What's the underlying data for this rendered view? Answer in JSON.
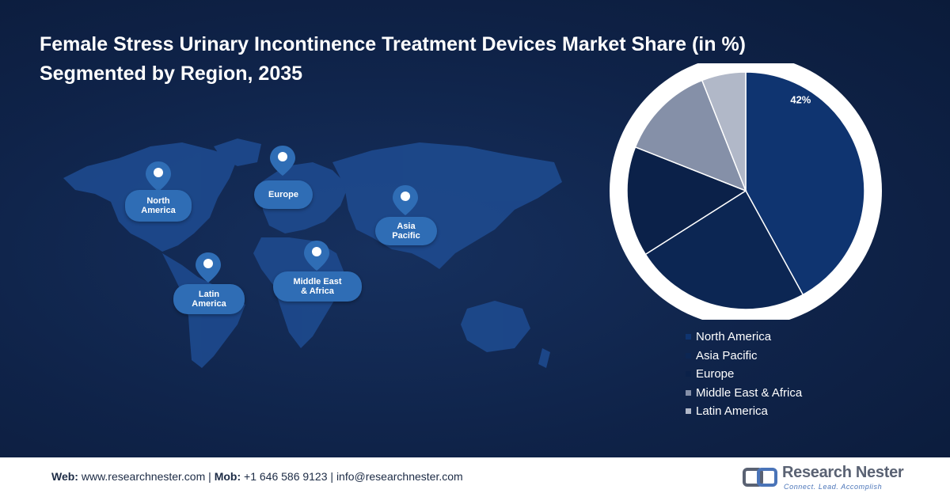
{
  "title": {
    "line1": "Female Stress Urinary Incontinence Treatment Devices Market Share (in %)",
    "line2": "Segmented by Region, 2035"
  },
  "map_labels": {
    "north_america": [
      "North",
      "America"
    ],
    "europe": [
      "Europe"
    ],
    "asia_pacific": [
      "Asia",
      "Pacific"
    ],
    "latin_america": [
      "Latin",
      "America"
    ],
    "middle_east_africa": [
      "Middle East",
      "& Africa"
    ]
  },
  "chart_data": {
    "type": "pie",
    "title": "",
    "slices": [
      {
        "label": "North America",
        "value": 42,
        "color": "#0f3470",
        "data_label": "42%"
      },
      {
        "label": "Asia Pacific",
        "value": 24,
        "color": "#0c2653",
        "data_label": ""
      },
      {
        "label": "Europe",
        "value": 15,
        "color": "#0b2149",
        "data_label": ""
      },
      {
        "label": "Middle East & Africa",
        "value": 13,
        "color": "#8590a8",
        "data_label": ""
      },
      {
        "label": "Latin America",
        "value": 6,
        "color": "#b1b8c8",
        "data_label": ""
      }
    ],
    "legend_position": "bottom-right"
  },
  "footer": {
    "web_label": "Web:",
    "web_value": "www.researchnester.com",
    "mob_label": "Mob:",
    "mob_value": "+1 646 586 9123",
    "email_value": "info@researchnester.com",
    "separator": "|",
    "brand_name": "Research Nester",
    "brand_tagline": "Connect. Lead. Accomplish"
  }
}
